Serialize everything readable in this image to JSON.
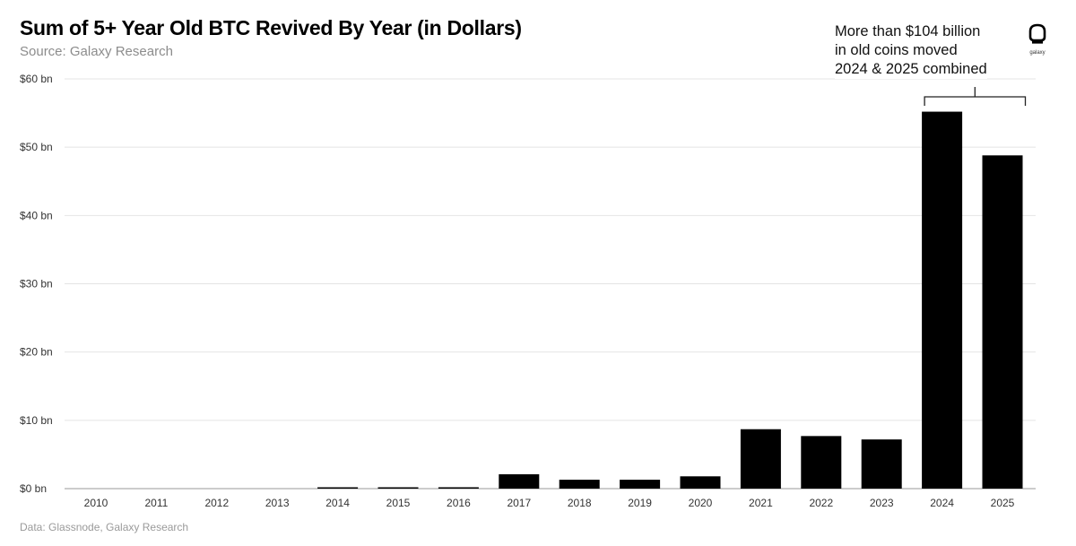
{
  "header": {
    "title": "Sum of 5+ Year Old BTC Revived By Year (in Dollars)",
    "subtitle": "Source: Galaxy Research"
  },
  "footer": {
    "note": "Data: Glassnode, Galaxy Research"
  },
  "annotation": {
    "lines": [
      "More than $104 billion",
      "in old coins moved",
      "2024 & 2025 combined"
    ],
    "bracket_from": "2024",
    "bracket_to": "2025"
  },
  "logo": {
    "icon": "galaxy-logo-icon",
    "text": "galaxy"
  },
  "colors": {
    "bar": "#000000",
    "grid": "#e4e4e4",
    "axis": "#9a9a9a"
  },
  "chart_data": {
    "type": "bar",
    "title": "Sum of 5+ Year Old BTC Revived By Year (in Dollars)",
    "xlabel": "",
    "ylabel": "",
    "categories": [
      "2010",
      "2011",
      "2012",
      "2013",
      "2014",
      "2015",
      "2016",
      "2017",
      "2018",
      "2019",
      "2020",
      "2021",
      "2022",
      "2023",
      "2024",
      "2025"
    ],
    "values": [
      0,
      0,
      0,
      0,
      0.1,
      0.1,
      0.2,
      2.1,
      1.3,
      1.3,
      1.8,
      8.7,
      7.7,
      7.2,
      55.2,
      48.8
    ],
    "unit": "$ bn",
    "ylim": [
      0,
      60
    ],
    "yticks": [
      0,
      10,
      20,
      30,
      40,
      50,
      60
    ],
    "ytick_labels": [
      "$0 bn",
      "$10 bn",
      "$20 bn",
      "$30 bn",
      "$40 bn",
      "$50 bn",
      "$60 bn"
    ],
    "grid": true,
    "legend": "none"
  }
}
